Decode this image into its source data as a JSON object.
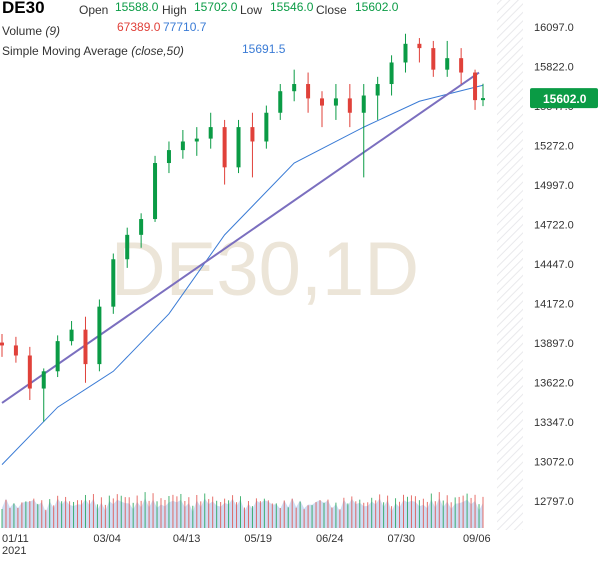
{
  "legend": {
    "symbol": "DE30",
    "open_label": "Open",
    "open_value": "15588.0",
    "high_label": "High",
    "high_value": "15702.0",
    "low_label": "Low",
    "low_value": "15546.0",
    "close_label": "Close",
    "close_value": "15602.0",
    "volume_label": "Volume",
    "volume_param": "(9)",
    "volume_value": "67389.0",
    "volume_ma_value": "77710.7",
    "sma_label": "Simple Moving Average",
    "sma_param": "(close,50)",
    "sma_value": "15691.5"
  },
  "watermark": "DE30,1D",
  "price_badge": "15602.0",
  "colors": {
    "up": "#0a9b45",
    "down": "#e0413a",
    "sma": "#3a7bd5",
    "trend": "#7b6fbf",
    "volume": "#a7c1ea"
  },
  "chart_data": {
    "type": "candlestick",
    "y_ticks": [
      "16097.0",
      "15822.0",
      "15547.0",
      "15272.0",
      "14997.0",
      "14722.0",
      "14447.0",
      "14172.0",
      "13897.0",
      "13622.0",
      "13347.0",
      "13072.0",
      "12797.0"
    ],
    "y_range": [
      12797.0,
      16097.0
    ],
    "x_ticks": [
      "01/11",
      "03/04",
      "04/13",
      "05/19",
      "06/24",
      "07/30",
      "09/06"
    ],
    "x_year": "2021",
    "x_range": [
      "2021-01-11",
      "2021-09-10"
    ],
    "last_close": 15602.0,
    "candles": [
      [
        "2021-01-11",
        13900,
        13960,
        13800,
        13880
      ],
      [
        "2021-01-18",
        13880,
        13940,
        13760,
        13810
      ],
      [
        "2021-01-25",
        13810,
        13870,
        13500,
        13580
      ],
      [
        "2021-02-01",
        13580,
        13720,
        13350,
        13700
      ],
      [
        "2021-02-08",
        13700,
        13950,
        13660,
        13910
      ],
      [
        "2021-02-15",
        13910,
        14050,
        13880,
        13990
      ],
      [
        "2021-02-22",
        13990,
        14080,
        13620,
        13750
      ],
      [
        "2021-03-01",
        13750,
        14200,
        13700,
        14150
      ],
      [
        "2021-03-08",
        14150,
        14520,
        14100,
        14480
      ],
      [
        "2021-03-15",
        14480,
        14700,
        14420,
        14650
      ],
      [
        "2021-03-22",
        14650,
        14800,
        14560,
        14760
      ],
      [
        "2021-03-29",
        14760,
        15200,
        14740,
        15150
      ],
      [
        "2021-04-05",
        15150,
        15300,
        15080,
        15240
      ],
      [
        "2021-04-12",
        15240,
        15380,
        15180,
        15300
      ],
      [
        "2021-04-19",
        15300,
        15400,
        15200,
        15320
      ],
      [
        "2021-04-26",
        15320,
        15500,
        15250,
        15400
      ],
      [
        "2021-05-03",
        15400,
        15450,
        15000,
        15120
      ],
      [
        "2021-05-10",
        15120,
        15450,
        15080,
        15400
      ],
      [
        "2021-05-17",
        15400,
        15500,
        15050,
        15300
      ],
      [
        "2021-05-24",
        15300,
        15550,
        15250,
        15500
      ],
      [
        "2021-05-31",
        15500,
        15700,
        15450,
        15650
      ],
      [
        "2021-06-07",
        15650,
        15800,
        15580,
        15700
      ],
      [
        "2021-06-14",
        15700,
        15780,
        15500,
        15600
      ],
      [
        "2021-06-21",
        15600,
        15650,
        15400,
        15550
      ],
      [
        "2021-06-28",
        15550,
        15700,
        15450,
        15600
      ],
      [
        "2021-07-05",
        15600,
        15700,
        15400,
        15500
      ],
      [
        "2021-07-12",
        15500,
        15700,
        15050,
        15620
      ],
      [
        "2021-07-19",
        15620,
        15750,
        15450,
        15700
      ],
      [
        "2021-07-26",
        15700,
        15900,
        15620,
        15850
      ],
      [
        "2021-08-02",
        15850,
        16050,
        15780,
        15980
      ],
      [
        "2021-08-09",
        15980,
        16020,
        15850,
        15950
      ],
      [
        "2021-08-16",
        15950,
        16000,
        15750,
        15800
      ],
      [
        "2021-08-23",
        15800,
        16000,
        15750,
        15880
      ],
      [
        "2021-08-30",
        15880,
        15950,
        15700,
        15780
      ],
      [
        "2021-09-06",
        15780,
        15800,
        15520,
        15588
      ],
      [
        "2021-09-10",
        15588,
        15702,
        15546,
        15602
      ]
    ],
    "sma_50": [
      [
        "2021-01-11",
        13050
      ],
      [
        "2021-02-08",
        13450
      ],
      [
        "2021-03-08",
        13700
      ],
      [
        "2021-04-05",
        14100
      ],
      [
        "2021-05-03",
        14650
      ],
      [
        "2021-06-07",
        15150
      ],
      [
        "2021-07-12",
        15400
      ],
      [
        "2021-08-09",
        15580
      ],
      [
        "2021-09-10",
        15691.5
      ]
    ],
    "trend_line": [
      [
        "2021-01-11",
        13480
      ],
      [
        "2021-09-10",
        15780
      ]
    ],
    "volume_ma": [
      [
        "2021-01-11",
        82000
      ],
      [
        "2021-03-04",
        84000
      ],
      [
        "2021-04-13",
        80000
      ],
      [
        "2021-05-19",
        78000
      ],
      [
        "2021-06-24",
        76000
      ],
      [
        "2021-07-30",
        82000
      ],
      [
        "2021-09-10",
        77710.7
      ]
    ]
  }
}
